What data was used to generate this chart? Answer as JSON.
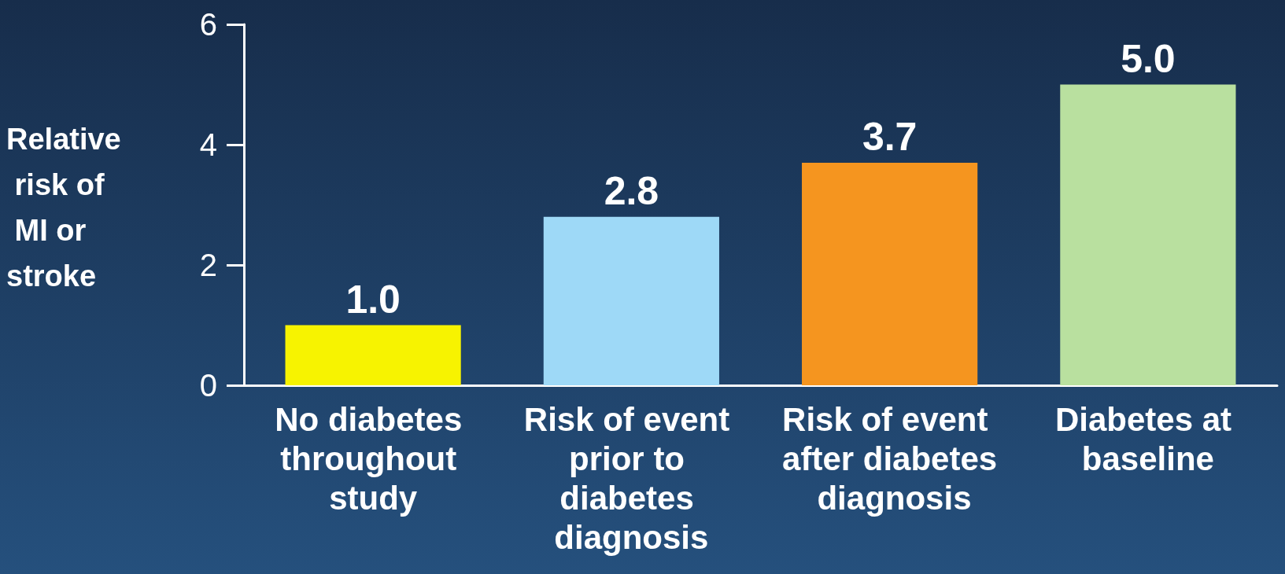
{
  "chart_data": {
    "type": "bar",
    "ylabel": "Relative risk of MI or stroke",
    "categories": [
      "No diabetes throughout study",
      "Risk of event prior to diabetes diagnosis",
      "Risk of event after diabetes diagnosis",
      "Diabetes at baseline"
    ],
    "values": [
      1.0,
      2.8,
      3.7,
      5.0
    ],
    "colors": [
      "#f7f300",
      "#9ed9f7",
      "#f5951f",
      "#b9e09f"
    ],
    "value_labels": [
      "1.0",
      "2.8",
      "3.7",
      "5.0"
    ],
    "ylim": [
      0,
      6
    ],
    "yticks": [
      0,
      2,
      4,
      6
    ],
    "grid": false
  }
}
